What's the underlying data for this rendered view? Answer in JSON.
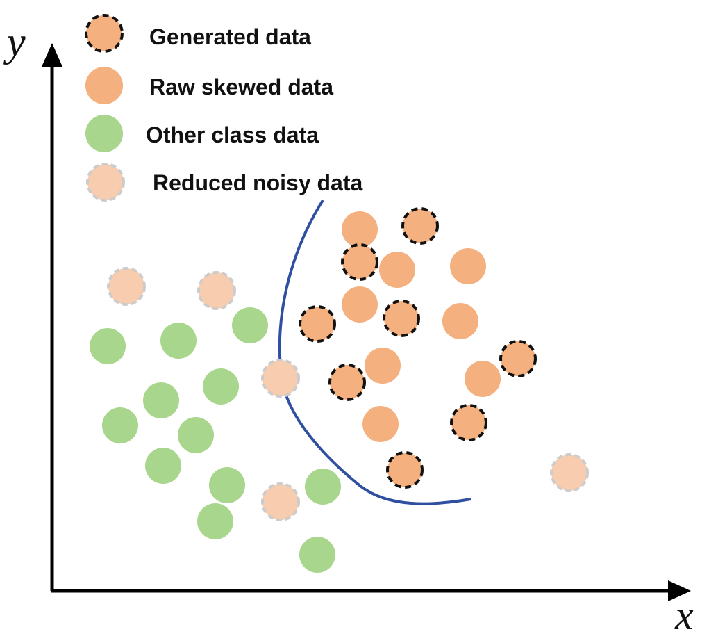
{
  "axes": {
    "x_label": "x",
    "y_label": "y"
  },
  "colors": {
    "raw": "#F4B07E",
    "generated": "#F4B07E",
    "generated_outline": "#111111",
    "other": "#A8D68C",
    "noisy": "#F8CDAF",
    "noisy_outline": "#CCCCCC",
    "boundary": "#2F4FA0",
    "axis": "#000000"
  },
  "legend": [
    {
      "kind": "generated",
      "label": "Generated data"
    },
    {
      "kind": "raw",
      "label": "Raw skewed data"
    },
    {
      "kind": "other",
      "label": "Other class data"
    },
    {
      "kind": "noisy",
      "label": "Reduced noisy data"
    }
  ]
}
